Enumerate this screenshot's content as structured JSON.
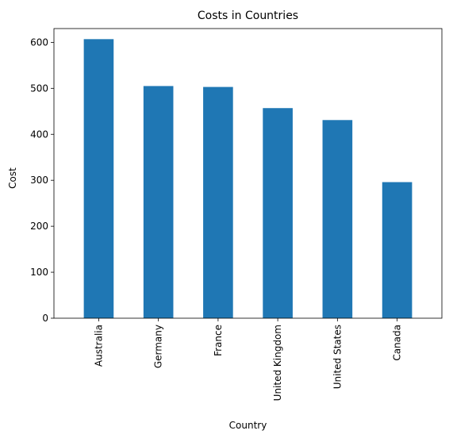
{
  "chart_data": {
    "type": "bar",
    "title": "Costs in Countries",
    "xlabel": "Country",
    "ylabel": "Cost",
    "categories": [
      "Australia",
      "Germany",
      "France",
      "United Kingdom",
      "United States",
      "Canada"
    ],
    "values": [
      607,
      505,
      503,
      457,
      431,
      296
    ],
    "ylim": [
      0,
      630
    ],
    "yticks": [
      0,
      100,
      200,
      300,
      400,
      500,
      600
    ],
    "grid": false,
    "bar_color": "#1f77b4"
  }
}
